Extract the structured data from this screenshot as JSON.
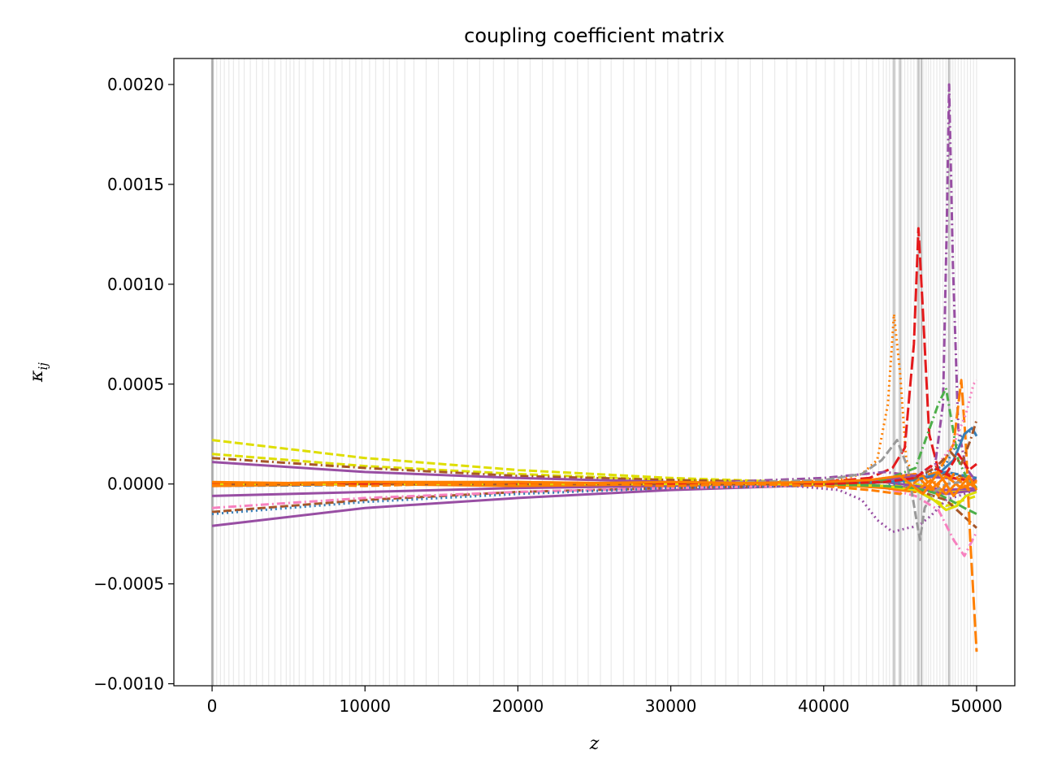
{
  "chart_data": {
    "type": "line",
    "title": "coupling coefficient matrix",
    "xlabel": "z",
    "ylabel": "κ",
    "ylabel_sub": "ij",
    "xlim": [
      -2500,
      52500
    ],
    "ylim": [
      -0.00101,
      0.00213
    ],
    "x_ticks": [
      0,
      10000,
      20000,
      30000,
      40000,
      50000
    ],
    "x_tick_labels": [
      "0",
      "10000",
      "20000",
      "30000",
      "40000",
      "50000"
    ],
    "y_ticks": [
      -0.001,
      -0.0005,
      0.0,
      0.0005,
      0.001,
      0.0015,
      0.002
    ],
    "y_tick_labels": [
      "−0.0010",
      "−0.0005",
      "0.0000",
      "0.0005",
      "0.0010",
      "0.0015",
      "0.0020"
    ],
    "grid": false,
    "legend": "none",
    "vertical_markers": {
      "color": "#b0b0b0",
      "positions": [
        0,
        100,
        300,
        550,
        800,
        1100,
        1400,
        1750,
        2100,
        2500,
        2900,
        3300,
        3700,
        4100,
        4500,
        4850,
        5100,
        5350,
        5700,
        6100,
        6600,
        7300,
        7700,
        8100,
        8500,
        9000,
        9400,
        9800,
        10300,
        10700,
        11200,
        11600,
        12100,
        12600,
        13200,
        14000,
        14800,
        15800,
        16700,
        17500,
        18400,
        19100,
        20000,
        20800,
        21600,
        22300,
        23100,
        23900,
        24600,
        25400,
        26100,
        26900,
        27600,
        28400,
        29000,
        29800,
        30500,
        31300,
        32000,
        32900,
        33600,
        34400,
        35200,
        36000,
        36800,
        37600,
        38200,
        38900,
        39500,
        40100,
        40700,
        41300,
        41800,
        42300,
        42800,
        43200,
        43600,
        43900,
        44100,
        44300,
        44500,
        44700,
        44900,
        45100,
        45300,
        45500,
        45700,
        45900,
        46100,
        46250,
        46400,
        46550,
        46700,
        46850,
        47000,
        47200,
        47400,
        47600,
        47800,
        48000,
        48150,
        48300,
        48450,
        48600,
        48800,
        49000,
        49200,
        49400,
        49600,
        49800,
        50000
      ],
      "dark_positions": [
        0,
        30,
        44600,
        45000,
        46200,
        46400,
        48200
      ]
    },
    "series": [
      {
        "color": "#dede00",
        "dash": "dashed",
        "x": [
          0,
          10000,
          20000,
          30000,
          38000,
          42000,
          44000,
          46000,
          48000,
          50000
        ],
        "y": [
          0.00022,
          0.00013,
          7e-05,
          3e-05,
          1e-05,
          1e-05,
          2e-05,
          0.0,
          -4e-05,
          -3e-05
        ]
      },
      {
        "color": "#dede00",
        "dash": "dashed",
        "x": [
          0,
          10000,
          20000,
          30000,
          38000,
          42000,
          44000,
          46000,
          48000,
          50000
        ],
        "y": [
          0.00015,
          9e-05,
          5e-05,
          2e-05,
          1e-05,
          0.0,
          1e-05,
          -3e-05,
          -0.00011,
          -6e-05
        ]
      },
      {
        "color": "#a65628",
        "dash": "dashdot",
        "x": [
          0,
          10000,
          20000,
          30000,
          38000,
          42000,
          44000,
          46000,
          48000,
          50000
        ],
        "y": [
          0.00013,
          8e-05,
          4e-05,
          2e-05,
          1e-05,
          0.0,
          1e-05,
          2e-05,
          5e-05,
          3e-05
        ]
      },
      {
        "color": "#984ea3",
        "dash": "solid",
        "x": [
          0,
          10000,
          20000,
          30000,
          38000,
          42000,
          44000,
          46000,
          48000,
          50000
        ],
        "y": [
          0.00011,
          6e-05,
          3e-05,
          1e-05,
          0.0,
          0.0,
          2e-05,
          4e-05,
          3e-05,
          2e-05
        ]
      },
      {
        "color": "#984ea3",
        "dash": "solid",
        "x": [
          0,
          10000,
          20000,
          30000,
          38000,
          42000,
          44000,
          46000,
          48000,
          50000
        ],
        "y": [
          -6e-05,
          -4e-05,
          -2e-05,
          -1e-05,
          0.0,
          0.0,
          -1e-05,
          -2e-05,
          -5e-05,
          -3e-05
        ]
      },
      {
        "color": "#984ea3",
        "dash": "solid",
        "x": [
          0,
          10000,
          20000,
          30000,
          38000,
          42000,
          44000,
          46000,
          48000,
          50000
        ],
        "y": [
          -0.00021,
          -0.00012,
          -7e-05,
          -3e-05,
          -1e-05,
          0.0,
          1e-05,
          -1e-05,
          -3e-05,
          -2e-05
        ]
      },
      {
        "color": "#a65628",
        "dash": "dashed",
        "x": [
          0,
          10000,
          20000,
          30000,
          38000,
          42000,
          44000,
          46000,
          48000,
          50000
        ],
        "y": [
          -0.00014,
          -8e-05,
          -4e-05,
          -2e-05,
          -1e-05,
          0.0,
          -1e-05,
          -3e-05,
          -8e-05,
          -0.00022
        ]
      },
      {
        "color": "#f781bf",
        "dash": "dashdot",
        "x": [
          0,
          10000,
          20000,
          30000,
          38000,
          42000,
          44000,
          46000,
          47500,
          48500,
          49200,
          50000
        ],
        "y": [
          -0.00012,
          -7e-05,
          -4e-05,
          -2e-05,
          -1e-05,
          0.0,
          -2e-05,
          -6e-05,
          -0.00013,
          -0.00028,
          -0.00036,
          -0.00024
        ]
      },
      {
        "color": "#377eb8",
        "dash": "dotted",
        "x": [
          0,
          10000,
          20000,
          30000,
          38000,
          42000,
          44000,
          46000,
          48000,
          49000,
          50000
        ],
        "y": [
          -0.00015,
          -9e-05,
          -5e-05,
          -2e-05,
          -1e-05,
          0.0,
          -1e-05,
          2e-05,
          0.0001,
          0.00024,
          0.00028
        ]
      },
      {
        "color": "#377eb8",
        "dash": "dashed",
        "x": [
          0,
          10000,
          20000,
          30000,
          38000,
          42000,
          44000,
          46000,
          48000,
          50000
        ],
        "y": [
          -1e-05,
          -5e-06,
          0.0,
          0.0,
          0.0,
          0.0,
          1e-05,
          3e-05,
          6e-05,
          3e-05
        ]
      },
      {
        "color": "#ff7f00",
        "dash": "solid",
        "x": [
          0,
          10000,
          20000,
          30000,
          38000,
          42000,
          44000,
          46000,
          47000,
          48000,
          49000,
          50000
        ],
        "y": [
          0.0,
          1e-05,
          1e-05,
          0.0,
          0.0,
          1e-05,
          3e-05,
          5e-05,
          -3e-05,
          4e-05,
          -2e-05,
          1e-05
        ]
      },
      {
        "color": "#ff7f00",
        "dash": "solid",
        "x": [
          0,
          10000,
          20000,
          30000,
          38000,
          42000,
          44000,
          46000,
          47000,
          48000,
          49000,
          50000
        ],
        "y": [
          -1e-05,
          0.0,
          -1e-05,
          0.0,
          0.0,
          -1e-05,
          -2e-05,
          -4e-05,
          2e-05,
          -5e-05,
          3e-05,
          -2e-05
        ]
      },
      {
        "color": "#ff7f00",
        "dash": "dotted",
        "x": [
          0,
          10000,
          20000,
          30000,
          38000,
          41000,
          42500,
          43500,
          44200,
          44600,
          45000,
          45400,
          46000,
          47000,
          48000,
          50000
        ],
        "y": [
          0.0,
          0.0,
          0.0,
          0.0,
          1e-05,
          2e-05,
          5e-05,
          0.00012,
          0.0004,
          0.00085,
          0.00055,
          0.00012,
          3e-05,
          2e-05,
          -2e-05,
          1e-05
        ]
      },
      {
        "color": "#e41a1c",
        "dash": "longdash",
        "x": [
          0,
          10000,
          20000,
          30000,
          40000,
          43000,
          44500,
          45300,
          45900,
          46200,
          46500,
          46900,
          47500,
          48500,
          50000
        ],
        "y": [
          0.0,
          0.0,
          0.0,
          0.0,
          1e-05,
          3e-05,
          8e-05,
          0.00018,
          0.0007,
          0.00128,
          0.00085,
          0.00025,
          7e-05,
          3e-05,
          1e-05
        ]
      },
      {
        "color": "#984ea3",
        "dash": "dashdot",
        "x": [
          0,
          10000,
          20000,
          30000,
          40000,
          44000,
          46000,
          47300,
          47800,
          48050,
          48200,
          48450,
          48800,
          49300,
          50000
        ],
        "y": [
          0.0,
          0.0,
          0.0,
          0.0,
          3e-05,
          6e-05,
          4e-05,
          0.0001,
          0.0004,
          0.0013,
          0.002,
          0.0011,
          0.00028,
          8e-05,
          1e-05
        ]
      },
      {
        "color": "#984ea3",
        "dash": "dotted",
        "x": [
          0,
          10000,
          20000,
          30000,
          38000,
          41000,
          42500,
          43500,
          44500,
          45500,
          46200,
          47000,
          48000,
          50000
        ],
        "y": [
          0.0,
          0.0,
          0.0,
          0.0,
          -1e-05,
          -3e-05,
          -8e-05,
          -0.00018,
          -0.00024,
          -0.00022,
          -0.00021,
          -0.00016,
          -8e-05,
          -3e-05
        ]
      },
      {
        "color": "#999999",
        "dash": "dashed",
        "x": [
          0,
          10000,
          20000,
          30000,
          40000,
          42500,
          43800,
          44800,
          45500,
          46000,
          46300,
          46600,
          47200,
          48000,
          50000
        ],
        "y": [
          0.0,
          0.0,
          0.0,
          0.0,
          2e-05,
          5e-05,
          0.00012,
          0.00022,
          8e-05,
          -0.00015,
          -0.00028,
          -0.00012,
          -4e-05,
          0.0,
          2e-05
        ]
      },
      {
        "color": "#4daf4a",
        "dash": "dashdot",
        "x": [
          0,
          10000,
          20000,
          30000,
          40000,
          44000,
          46000,
          46800,
          47500,
          48000,
          48400,
          48800,
          49300,
          50000
        ],
        "y": [
          0.0,
          0.0,
          0.0,
          0.0,
          0.0,
          2e-05,
          8e-05,
          0.00025,
          0.0004,
          0.00048,
          0.0003,
          0.00012,
          4e-05,
          -2e-05
        ]
      },
      {
        "color": "#ff7f00",
        "dash": "longdash",
        "x": [
          0,
          10000,
          20000,
          30000,
          40000,
          44000,
          46000,
          47500,
          48500,
          49000,
          49300,
          49600,
          50000
        ],
        "y": [
          0.0,
          0.0,
          0.0,
          0.0,
          0.0,
          1e-05,
          3e-05,
          6e-05,
          0.0002,
          0.00052,
          0.0002,
          -0.0003,
          -0.00084
        ]
      },
      {
        "color": "#f781bf",
        "dash": "dotted",
        "x": [
          0,
          10000,
          20000,
          30000,
          40000,
          44000,
          46000,
          47500,
          48500,
          49300,
          49800,
          50000
        ],
        "y": [
          0.0,
          0.0,
          0.0,
          0.0,
          0.0,
          1e-05,
          3e-05,
          0.0001,
          0.0002,
          0.00035,
          0.0005,
          0.00052
        ]
      },
      {
        "color": "#377eb8",
        "dash": "solid",
        "x": [
          0,
          10000,
          20000,
          30000,
          40000,
          44000,
          46000,
          47500,
          48500,
          49200,
          49700,
          50000
        ],
        "y": [
          0.0,
          0.0,
          0.0,
          0.0,
          0.0,
          1e-05,
          2e-05,
          5e-05,
          0.00012,
          0.00025,
          0.00028,
          0.00024
        ]
      },
      {
        "color": "#dede00",
        "dash": "solid",
        "x": [
          0,
          10000,
          20000,
          30000,
          40000,
          44000,
          46000,
          47200,
          48000,
          48700,
          49300,
          50000
        ],
        "y": [
          0.0,
          0.0,
          0.0,
          0.0,
          0.0,
          -1e-05,
          -3e-05,
          -8e-05,
          -0.00013,
          -0.00011,
          -6e-05,
          -4e-05
        ]
      },
      {
        "color": "#4daf4a",
        "dash": "dashed",
        "x": [
          0,
          10000,
          20000,
          30000,
          40000,
          44000,
          46000,
          47500,
          48500,
          49200,
          50000
        ],
        "y": [
          0.0,
          0.0,
          0.0,
          0.0,
          0.0,
          -1e-05,
          -2e-05,
          -5e-05,
          -9e-05,
          -0.00012,
          -0.00015
        ]
      },
      {
        "color": "#a65628",
        "dash": "dashdot",
        "x": [
          0,
          10000,
          20000,
          30000,
          40000,
          44000,
          46000,
          47300,
          48300,
          49000,
          49600,
          50000
        ],
        "y": [
          0.0,
          0.0,
          0.0,
          0.0,
          0.0,
          1e-05,
          3e-05,
          8e-05,
          0.00016,
          0.0001,
          0.00022,
          0.00032
        ]
      },
      {
        "color": "#e41a1c",
        "dash": "dashed",
        "x": [
          0,
          10000,
          20000,
          30000,
          40000,
          44000,
          46000,
          47000,
          48000,
          48800,
          49500,
          50000
        ],
        "y": [
          0.0,
          0.0,
          0.0,
          0.0,
          0.0,
          1e-05,
          3e-05,
          9e-05,
          5e-05,
          0.00015,
          7e-05,
          0.0001
        ]
      },
      {
        "color": "#ff7f00",
        "dash": "solid",
        "x": [
          0,
          5000,
          10000,
          15000,
          20000,
          25000,
          30000,
          35000,
          40000,
          43000,
          45000,
          46500,
          47500,
          48500,
          49500,
          50000
        ],
        "y": [
          1e-05,
          5e-06,
          1e-05,
          5e-06,
          1e-05,
          5e-06,
          1e-05,
          5e-06,
          1e-05,
          2e-05,
          4e-05,
          -5e-05,
          6e-05,
          -6e-05,
          4e-05,
          -3e-05
        ]
      },
      {
        "color": "#ff7f00",
        "dash": "dashed",
        "x": [
          0,
          5000,
          10000,
          15000,
          20000,
          25000,
          30000,
          35000,
          40000,
          43000,
          45000,
          46500,
          47500,
          48500,
          49500,
          50000
        ],
        "y": [
          -5e-06,
          0.0,
          -1e-05,
          0.0,
          -5e-06,
          0.0,
          -1e-05,
          0.0,
          -1e-05,
          -3e-05,
          -5e-05,
          4e-05,
          -6e-05,
          5e-05,
          -3e-05,
          2e-05
        ]
      }
    ]
  }
}
